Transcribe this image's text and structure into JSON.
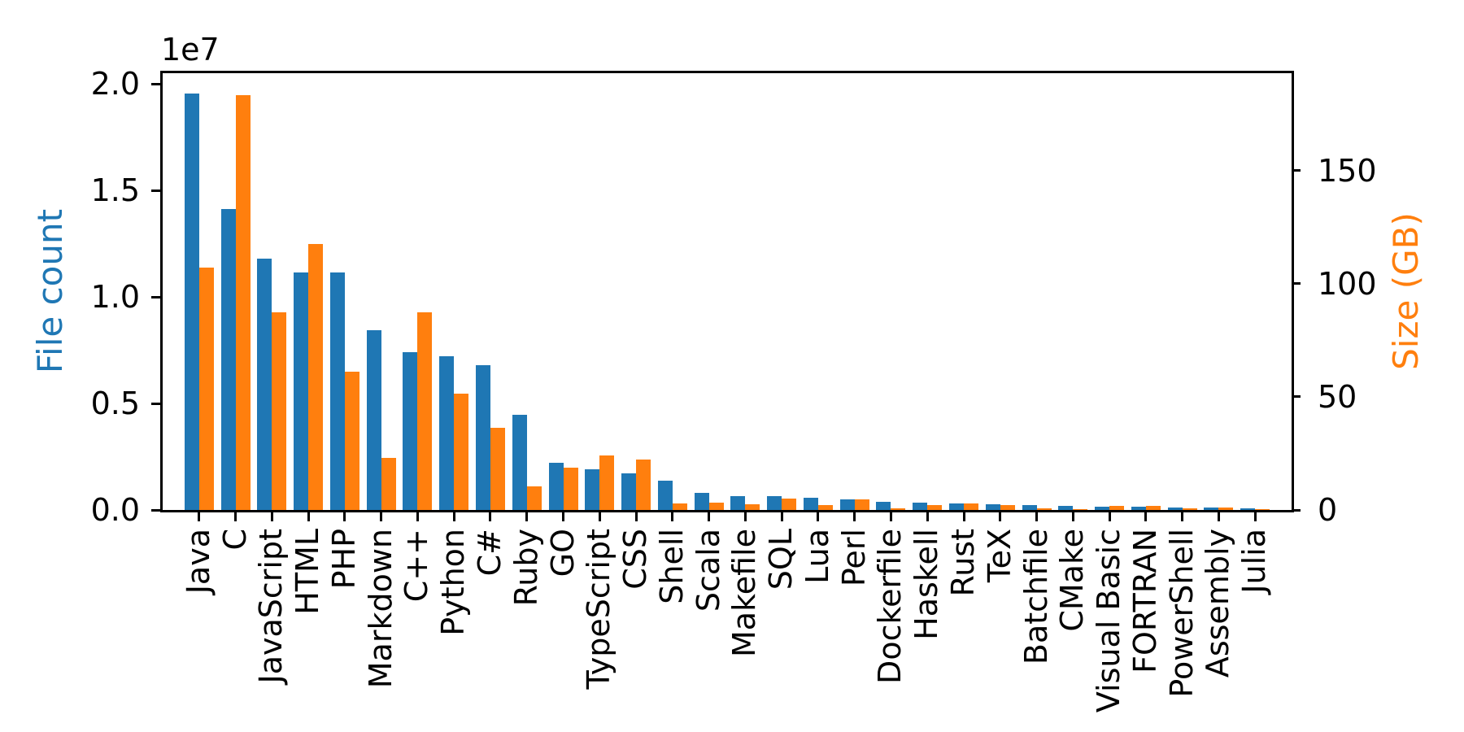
{
  "chart_data": {
    "type": "bar",
    "title": "",
    "bar_orientation": "vertical",
    "grid": false,
    "legend": "none",
    "categories": [
      "Java",
      "C",
      "JavaScript",
      "HTML",
      "PHP",
      "Markdown",
      "C++",
      "Python",
      "C#",
      "Ruby",
      "GO",
      "TypeScript",
      "CSS",
      "Shell",
      "Scala",
      "Makefile",
      "SQL",
      "Lua",
      "Perl",
      "Dockerfile",
      "Haskell",
      "Rust",
      "TeX",
      "Batchfile",
      "CMake",
      "Visual Basic",
      "FORTRAN",
      "PowerShell",
      "Assembly",
      "Julia"
    ],
    "series": [
      {
        "name": "File count",
        "axis": "left",
        "color": "#1f77b4",
        "values": [
          19560000,
          14140000,
          11800000,
          11160000,
          11150000,
          8450000,
          7390000,
          7200000,
          6790000,
          4460000,
          2230000,
          1910000,
          1710000,
          1360000,
          800000,
          650000,
          660000,
          560000,
          510000,
          400000,
          340000,
          320000,
          280000,
          240000,
          180000,
          160000,
          140000,
          130000,
          100000,
          90000
        ]
      },
      {
        "name": "Size (GB)",
        "axis": "right",
        "color": "#ff7f0e",
        "values": [
          107,
          183.4,
          87.4,
          117.4,
          61,
          22.9,
          87.4,
          51.3,
          36.4,
          10.5,
          18.7,
          24.2,
          22.4,
          2.9,
          3.4,
          2.6,
          5.2,
          2.3,
          4.8,
          0.7,
          2.2,
          2.7,
          2.3,
          0.8,
          0.5,
          1.9,
          1.8,
          0.7,
          0.9,
          0.3
        ]
      }
    ],
    "xlabel": "",
    "ylabel_left": "File count",
    "ylabel_right": "Size (GB)",
    "offset_text_left": "1e7",
    "ylim_left": [
      0,
      20500000
    ],
    "ylim_right": [
      0,
      193
    ],
    "yticks_left": [
      0,
      5000000,
      10000000,
      15000000,
      20000000
    ],
    "ytick_labels_left": [
      "0.0",
      "0.5",
      "1.0",
      "1.5",
      "2.0"
    ],
    "yticks_right": [
      0,
      50,
      100,
      150
    ],
    "ytick_labels_right": [
      "0",
      "50",
      "100",
      "150"
    ]
  }
}
